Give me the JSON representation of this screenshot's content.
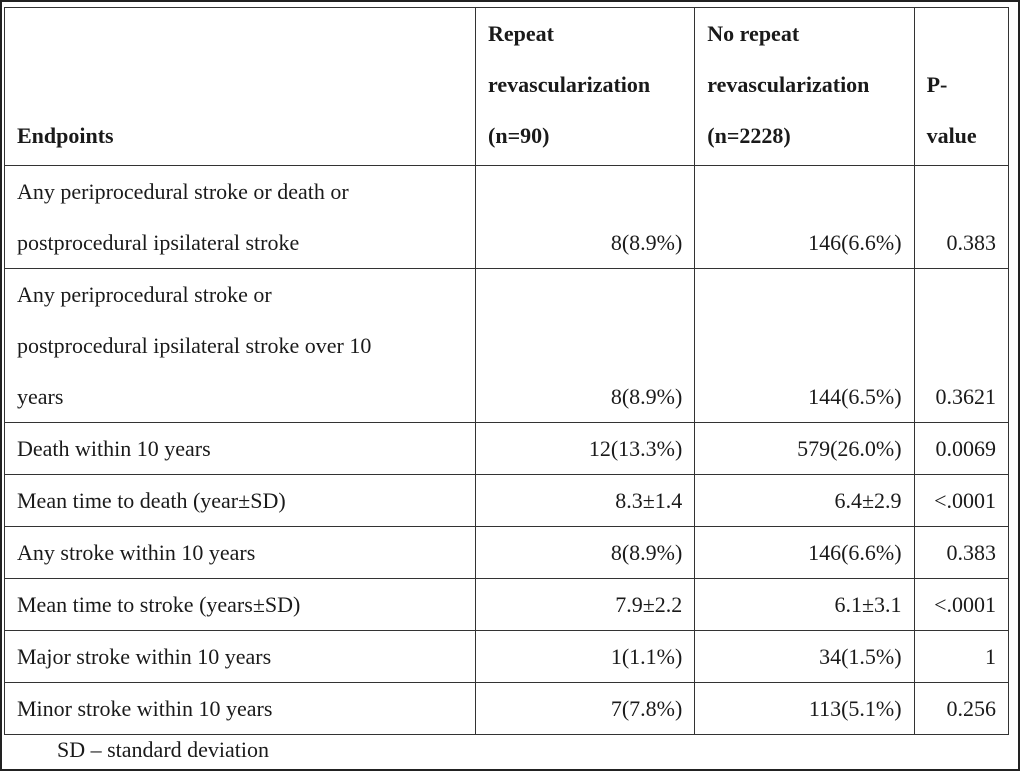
{
  "table": {
    "headers": {
      "endpoints": "Endpoints",
      "repeat": [
        "Repeat",
        "revascularization",
        "(n=90)"
      ],
      "no_repeat": [
        "No repeat",
        "revascularization",
        "(n=2228)"
      ],
      "pvalue": [
        "P-",
        "value"
      ]
    },
    "rows": [
      {
        "endpoint": [
          "Any periprocedural stroke or death or",
          "postprocedural ipsilateral stroke"
        ],
        "repeat": "8(8.9%)",
        "no_repeat": "146(6.6%)",
        "p": "0.383"
      },
      {
        "endpoint": [
          "Any periprocedural stroke or",
          "postprocedural ipsilateral stroke over 10",
          "years"
        ],
        "repeat": "8(8.9%)",
        "no_repeat": "144(6.5%)",
        "p": "0.3621"
      },
      {
        "endpoint": [
          "Death within 10 years"
        ],
        "repeat": "12(13.3%)",
        "no_repeat": "579(26.0%)",
        "p": "0.0069"
      },
      {
        "endpoint": [
          "Mean time to death (year±SD)"
        ],
        "repeat": "8.3±1.4",
        "no_repeat": "6.4±2.9",
        "p": "<.0001"
      },
      {
        "endpoint": [
          "Any stroke within 10 years"
        ],
        "repeat": "8(8.9%)",
        "no_repeat": "146(6.6%)",
        "p": "0.383"
      },
      {
        "endpoint": [
          "Mean time to stroke (years±SD)"
        ],
        "repeat": "7.9±2.2",
        "no_repeat": "6.1±3.1",
        "p": "<.0001"
      },
      {
        "endpoint": [
          "Major stroke within 10 years"
        ],
        "repeat": "1(1.1%)",
        "no_repeat": "34(1.5%)",
        "p": "1"
      },
      {
        "endpoint": [
          "Minor stroke within 10 years"
        ],
        "repeat": "7(7.8%)",
        "no_repeat": "113(5.1%)",
        "p": "0.256"
      }
    ]
  },
  "footnote": "SD – standard deviation"
}
